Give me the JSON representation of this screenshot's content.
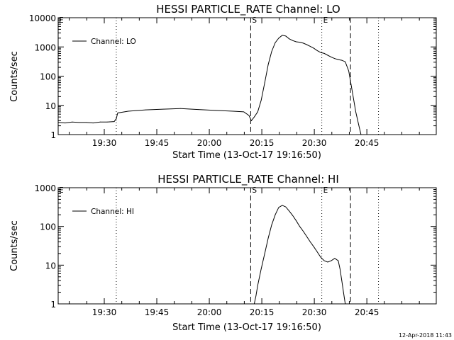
{
  "footer": {
    "timestamp": "12-Apr-2018 11:43"
  },
  "chart_data": [
    {
      "type": "line",
      "title": "HESSI PARTICLE_RATE Channel: LO",
      "xlabel": "Start Time (13-Oct-17 19:16:50)",
      "ylabel": "Counts/sec",
      "x_unit": "minutes since 19:16:50",
      "xlim": [
        0,
        108
      ],
      "ylim": [
        1,
        10000
      ],
      "yscale": "log",
      "grid": false,
      "legend_position": "top-left",
      "x_ticks": [
        {
          "x": 13.17,
          "label": "19:30"
        },
        {
          "x": 28.17,
          "label": "19:45"
        },
        {
          "x": 43.17,
          "label": "20:00"
        },
        {
          "x": 58.17,
          "label": "20:15"
        },
        {
          "x": 73.17,
          "label": "20:30"
        },
        {
          "x": 88.17,
          "label": "20:45"
        }
      ],
      "y_ticks": [
        {
          "y": 1,
          "label": "1"
        },
        {
          "y": 10,
          "label": "10"
        },
        {
          "y": 100,
          "label": "100"
        },
        {
          "y": 1000,
          "label": "1000"
        },
        {
          "y": 10000,
          "label": "10000"
        }
      ],
      "markers": [
        {
          "x": 0,
          "label": "E",
          "style": "none"
        },
        {
          "x": 16.6,
          "label": "",
          "style": "dotted"
        },
        {
          "x": 55.0,
          "label": "S",
          "style": "dashed"
        },
        {
          "x": 75.3,
          "label": "E",
          "style": "dotted"
        },
        {
          "x": 83.5,
          "label": "",
          "style": "dashed"
        },
        {
          "x": 91.5,
          "label": "",
          "style": "dotted"
        }
      ],
      "series": [
        {
          "name": "Channel: LO",
          "x": [
            0,
            2,
            4,
            6,
            8,
            10,
            12,
            14,
            16,
            16.6,
            17,
            20,
            25,
            30,
            35,
            40,
            45,
            50,
            53,
            54.5,
            55.2,
            56,
            57,
            58,
            59,
            60,
            61,
            62,
            63,
            64,
            65,
            66,
            67,
            68,
            69,
            70,
            71,
            72,
            73,
            74,
            75,
            76,
            77,
            78,
            79,
            80,
            81,
            82,
            83,
            84,
            85,
            86,
            86.5
          ],
          "y": [
            2.6,
            2.5,
            2.7,
            2.6,
            2.6,
            2.5,
            2.7,
            2.7,
            2.8,
            3.5,
            5.5,
            6.3,
            7.0,
            7.4,
            7.8,
            7.2,
            6.7,
            6.3,
            6.0,
            4.5,
            3.0,
            4.0,
            6.0,
            15,
            60,
            250,
            700,
            1400,
            2000,
            2500,
            2350,
            1900,
            1650,
            1500,
            1450,
            1350,
            1200,
            1050,
            900,
            750,
            640,
            600,
            520,
            450,
            400,
            370,
            350,
            310,
            150,
            30,
            6,
            1.8,
            1.0
          ]
        }
      ]
    },
    {
      "type": "line",
      "title": "HESSI PARTICLE_RATE Channel: HI",
      "xlabel": "Start Time (13-Oct-17 19:16:50)",
      "ylabel": "Counts/sec",
      "x_unit": "minutes since 19:16:50",
      "xlim": [
        0,
        108
      ],
      "ylim": [
        1,
        1000
      ],
      "yscale": "log",
      "grid": false,
      "legend_position": "top-left",
      "x_ticks": [
        {
          "x": 13.17,
          "label": "19:30"
        },
        {
          "x": 28.17,
          "label": "19:45"
        },
        {
          "x": 43.17,
          "label": "20:00"
        },
        {
          "x": 58.17,
          "label": "20:15"
        },
        {
          "x": 73.17,
          "label": "20:30"
        },
        {
          "x": 88.17,
          "label": "20:45"
        }
      ],
      "y_ticks": [
        {
          "y": 1,
          "label": "1"
        },
        {
          "y": 10,
          "label": "10"
        },
        {
          "y": 100,
          "label": "100"
        },
        {
          "y": 1000,
          "label": "1000"
        }
      ],
      "markers": [
        {
          "x": 0,
          "label": "E",
          "style": "none"
        },
        {
          "x": 16.6,
          "label": "",
          "style": "dotted"
        },
        {
          "x": 55.0,
          "label": "S",
          "style": "dashed"
        },
        {
          "x": 75.3,
          "label": "E",
          "style": "dotted"
        },
        {
          "x": 83.5,
          "label": "",
          "style": "dashed"
        },
        {
          "x": 91.5,
          "label": "",
          "style": "dotted"
        }
      ],
      "series": [
        {
          "name": "Channel: HI",
          "x": [
            56.0,
            56.5,
            57,
            58,
            59,
            60,
            61,
            62,
            63,
            64,
            65,
            66,
            67,
            68,
            69,
            70,
            71,
            72,
            73,
            74,
            75,
            76,
            77,
            78,
            79,
            80,
            80.5,
            81,
            81.5,
            82
          ],
          "y": [
            1.0,
            1.6,
            3.0,
            8,
            20,
            50,
            110,
            200,
            310,
            350,
            320,
            250,
            190,
            140,
            100,
            75,
            55,
            40,
            30,
            22,
            16,
            13,
            12,
            13,
            15,
            13,
            8,
            4,
            2,
            1.0
          ]
        }
      ]
    }
  ]
}
